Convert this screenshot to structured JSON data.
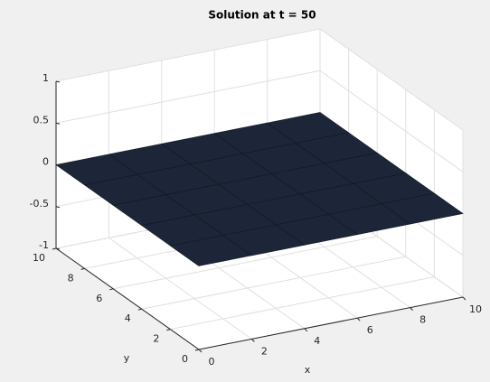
{
  "chart_data": {
    "type": "surface",
    "title": "Solution at t = 50",
    "xlabel": "x",
    "ylabel": "y",
    "x": [
      0,
      2,
      4,
      6,
      8,
      10
    ],
    "y": [
      0,
      2,
      4,
      6,
      8,
      10
    ],
    "z": [
      [
        0,
        0,
        0,
        0,
        0,
        0
      ],
      [
        0,
        0,
        0,
        0,
        0,
        0
      ],
      [
        0,
        0,
        0,
        0,
        0,
        0
      ],
      [
        0,
        0,
        0,
        0,
        0,
        0
      ],
      [
        0,
        0,
        0,
        0,
        0,
        0
      ],
      [
        0,
        0,
        0,
        0,
        0,
        0
      ]
    ],
    "color": "#1c2638",
    "xlim": [
      0,
      10
    ],
    "ylim": [
      0,
      10
    ],
    "zlim": [
      -1,
      1
    ],
    "xticks": [
      0,
      2,
      4,
      6,
      8,
      10
    ],
    "yticks": [
      0,
      2,
      4,
      6,
      8,
      10
    ],
    "zticks": [
      -1,
      -0.5,
      0,
      0.5,
      1
    ],
    "grid": true
  }
}
